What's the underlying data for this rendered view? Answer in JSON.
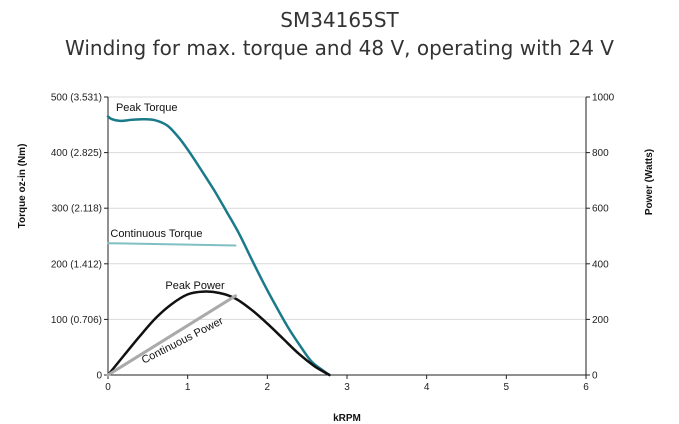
{
  "chart_data": {
    "type": "line",
    "title": "SM34165ST",
    "subtitle": "Winding for max. torque and 48 V, operating with 24 V",
    "xlabel": "kRPM",
    "ylabel_left": "Torque oz-in (Nm)",
    "ylabel_right": "Power (Watts)",
    "xlim": [
      0,
      6
    ],
    "ylim_left": [
      0,
      500
    ],
    "ylim_right": [
      0,
      1000
    ],
    "x_ticks": [
      "0",
      "1",
      "2",
      "3",
      "4",
      "5",
      "6"
    ],
    "y_left_ticks": [
      "0",
      "100 (0.706)",
      "200 (1.412)",
      "300 (2.118)",
      "400 (2.825)",
      "500 (3.531)"
    ],
    "y_right_ticks": [
      "0",
      "200",
      "400",
      "600",
      "800",
      "1000"
    ],
    "grid": "horizontal",
    "series": [
      {
        "name": "Peak Torque",
        "axis": "left",
        "color": "#1a7a8a",
        "x": [
          0,
          0.05,
          0.15,
          0.3,
          0.45,
          0.6,
          0.75,
          0.9,
          1.05,
          1.2,
          1.35,
          1.5,
          1.65,
          1.8,
          1.95,
          2.1,
          2.25,
          2.4,
          2.55,
          2.7,
          2.78
        ],
        "y": [
          465,
          460,
          457,
          459,
          460,
          458,
          448,
          425,
          395,
          362,
          328,
          291,
          253,
          209,
          166,
          126,
          88,
          55,
          25,
          8,
          0
        ]
      },
      {
        "name": "Continuous Torque",
        "axis": "left",
        "color": "#7fbfc4",
        "x": [
          0,
          1.6
        ],
        "y": [
          237,
          233
        ]
      },
      {
        "name": "Peak Power",
        "axis": "right",
        "color": "#111111",
        "x": [
          0,
          0.2,
          0.4,
          0.6,
          0.8,
          1.0,
          1.2,
          1.4,
          1.6,
          1.8,
          2.0,
          2.2,
          2.4,
          2.6,
          2.78
        ],
        "y": [
          0,
          70,
          140,
          205,
          255,
          290,
          300,
          295,
          275,
          235,
          185,
          130,
          75,
          30,
          0
        ]
      },
      {
        "name": "Continuous Power",
        "axis": "right",
        "color": "#aaaaaa",
        "x": [
          0,
          1.6
        ],
        "y": [
          0,
          285
        ]
      }
    ],
    "annotations": [
      {
        "text": "Peak Torque",
        "series": "Peak Torque",
        "x": 0.1,
        "y": 475,
        "axis": "left",
        "rotate": 0
      },
      {
        "text": "Continuous  Torque",
        "series": "Continuous Torque",
        "x": 0.03,
        "y": 248,
        "axis": "left",
        "rotate": 0
      },
      {
        "text": "Peak Power",
        "series": "Peak Power",
        "x": 0.72,
        "y": 310,
        "axis": "right",
        "rotate": 0
      },
      {
        "text": "Continuous Power",
        "series": "Continuous Power",
        "x": 0.45,
        "y": 40,
        "axis": "right",
        "rotate": -27
      }
    ]
  }
}
